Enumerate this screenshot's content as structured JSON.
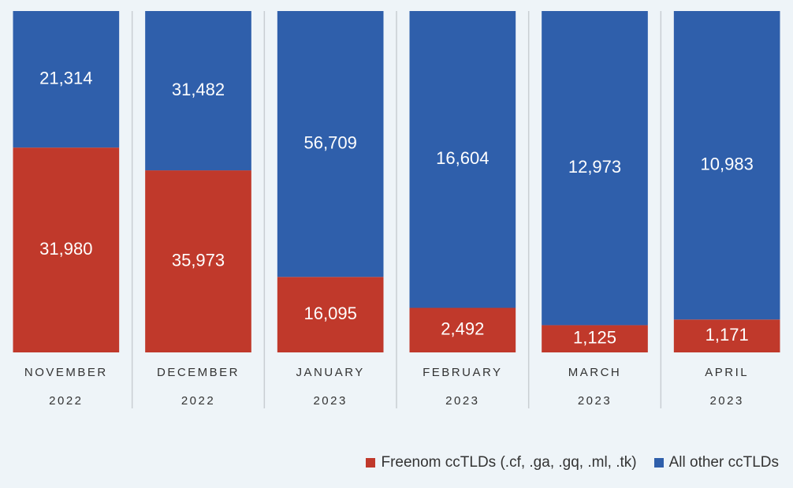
{
  "colors": {
    "freenom": "#c0392b",
    "other": "#2f5fab",
    "grid": "#c9ced3"
  },
  "chart_data": {
    "type": "bar",
    "stacked": "percent",
    "categories": [
      [
        "NOVEMBER",
        "2022"
      ],
      [
        "DECEMBER",
        "2022"
      ],
      [
        "JANUARY",
        "2023"
      ],
      [
        "FEBRUARY",
        "2023"
      ],
      [
        "MARCH",
        "2023"
      ],
      [
        "APRIL",
        "2023"
      ]
    ],
    "series": [
      {
        "name": "Freenom ccTLDs (.cf, .ga, .gq, .ml, .tk)",
        "values": [
          31980,
          35973,
          16095,
          2492,
          1125,
          1171
        ],
        "labels": [
          "31,980",
          "35,973",
          "16,095",
          "2,492",
          "1,125",
          "1,171"
        ]
      },
      {
        "name": "All other ccTLDs",
        "values": [
          21314,
          31482,
          56709,
          16604,
          12973,
          10983
        ],
        "labels": [
          "21,314",
          "31,482",
          "56,709",
          "16,604",
          "12,973",
          "10,983"
        ]
      }
    ],
    "legend": "bottom-right",
    "grid": false
  }
}
